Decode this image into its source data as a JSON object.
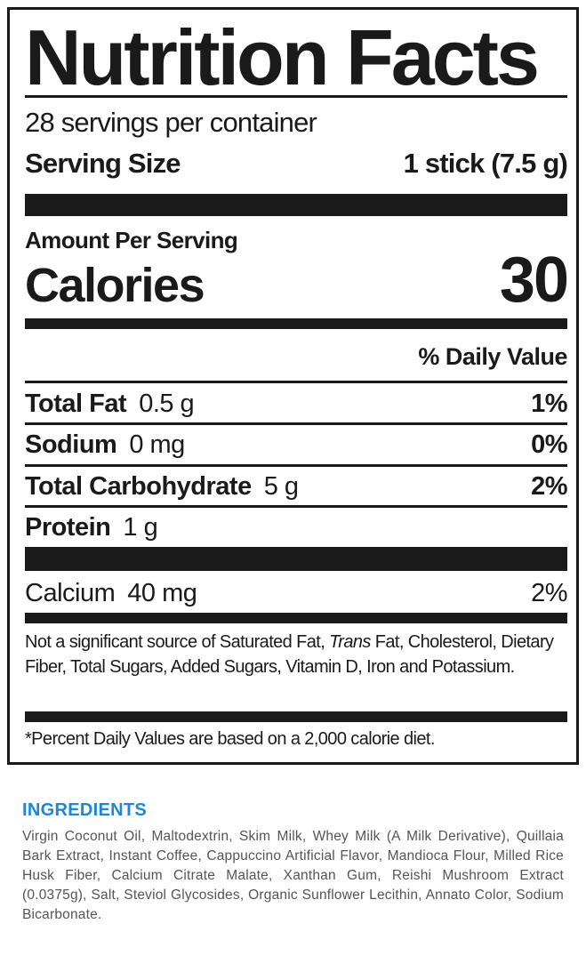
{
  "label": {
    "title": "Nutrition Facts",
    "servings_per_container": "28 servings per container",
    "serving_size_label": "Serving Size",
    "serving_size_value": "1 stick (7.5 g)",
    "amount_per_serving": "Amount Per Serving",
    "calories_label": "Calories",
    "calories_value": "30",
    "daily_value_header": "% Daily Value",
    "nutrients": [
      {
        "name": "Total Fat",
        "amount": "0.5 g",
        "dv": "1%"
      },
      {
        "name": "Sodium",
        "amount": "0 mg",
        "dv": "0%"
      },
      {
        "name": "Total Carbohydrate",
        "amount": "5 g",
        "dv": "2%"
      },
      {
        "name": "Protein",
        "amount": "1 g",
        "dv": ""
      }
    ],
    "vitamins": [
      {
        "name": "Calcium",
        "amount": "40 mg",
        "dv": "2%"
      }
    ],
    "note_part1": "Not a significant source of Saturated Fat, ",
    "note_italic": "Trans",
    "note_part2": " Fat, Cholesterol, Dietary Fiber, Total Sugars, Added  Sugars, Vitamin D, Iron and Potassium.",
    "footnote": "*Percent Daily Values are based on a 2,000 calorie diet."
  },
  "ingredients": {
    "heading": "INGREDIENTS",
    "text": "Virgin Coconut Oil, Maltodextrin, Skim Milk, Whey Milk (A Milk Derivative), Quillaia Bark Extract, Instant Coffee, Cappuccino Artificial Flavor, Mandioca Flour, Milled Rice Husk Fiber, Calcium Citrate Malate, Xanthan Gum, Reishi Mushroom Extract (0.0375g), Salt, Steviol Glycosides, Organic Sunflower Lecithin, Annato Color, Sodium Bicarbonate."
  },
  "colors": {
    "ink": "#1a1a1a",
    "ingredients_heading": "#1b87d6",
    "ingredients_text": "#555555"
  }
}
